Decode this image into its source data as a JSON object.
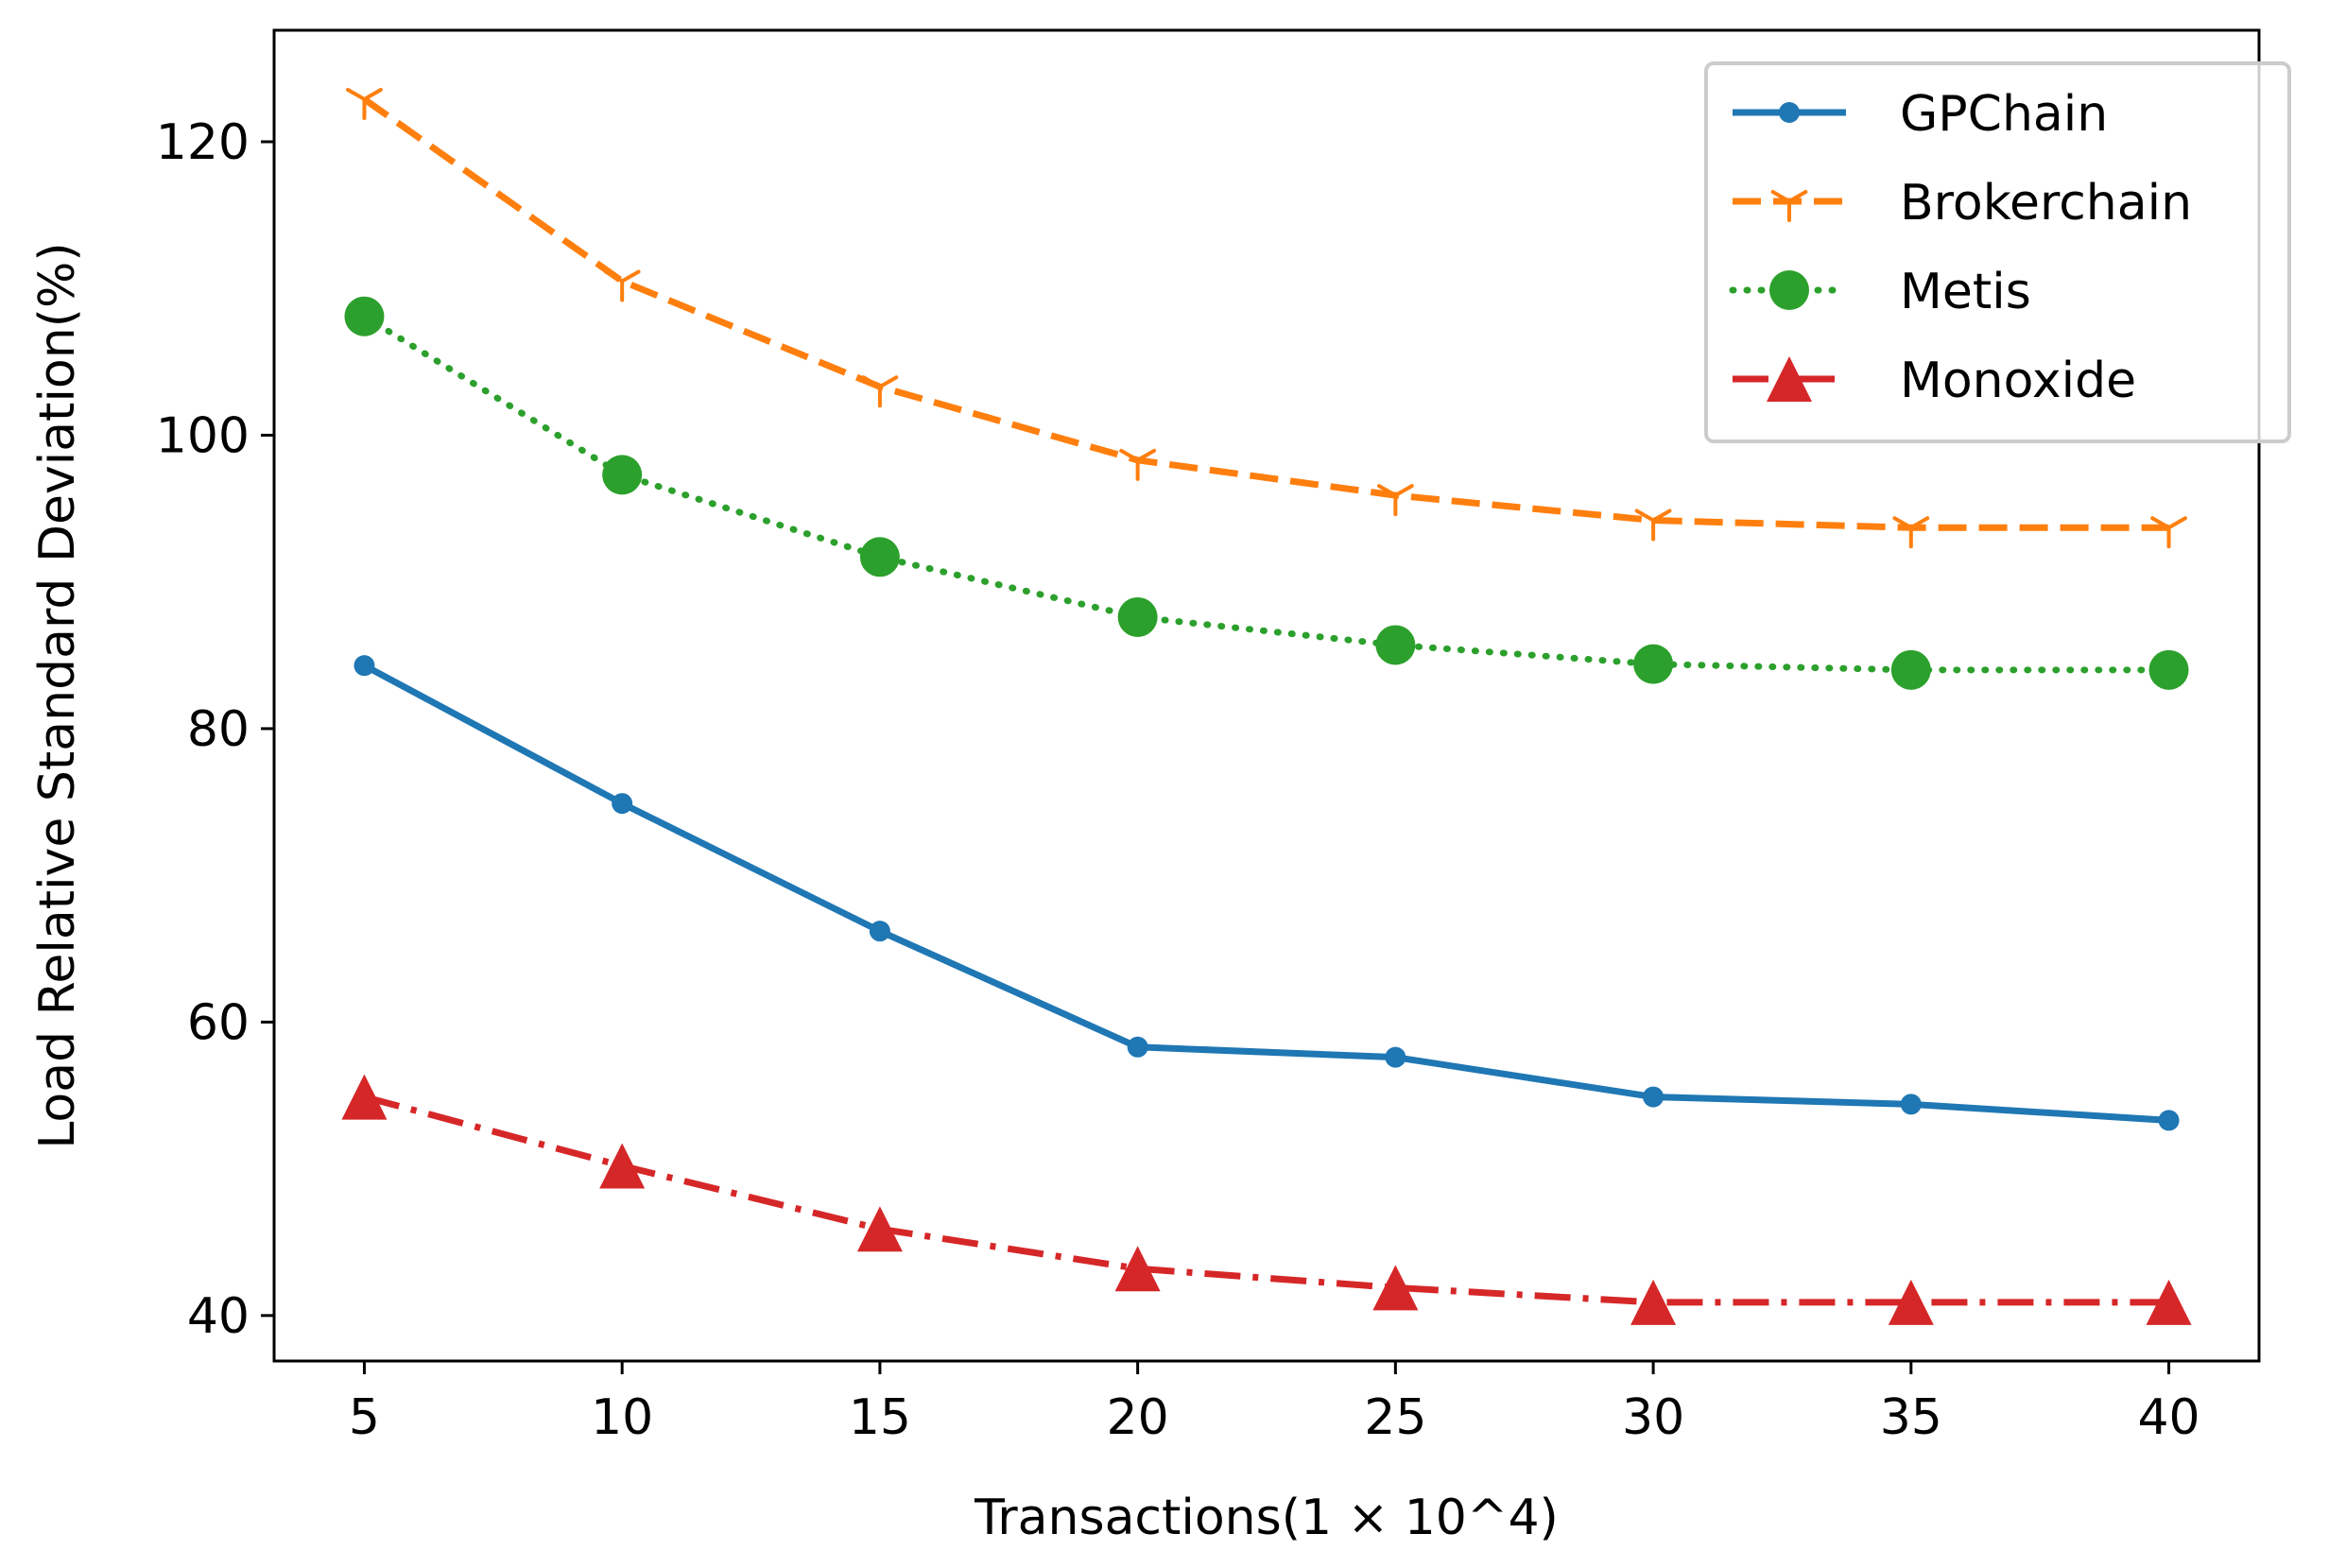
{
  "chart_data": {
    "type": "line",
    "title": "",
    "xlabel": "Transactions(1 × 10^4)",
    "ylabel": "Load Relative Standard Deviation(%)",
    "x": [
      5,
      10,
      15,
      20,
      25,
      30,
      35,
      40
    ],
    "x_ticks": [
      5,
      10,
      15,
      20,
      25,
      30,
      35,
      40
    ],
    "y_ticks": [
      40,
      60,
      80,
      100,
      120
    ],
    "xlim": [
      3.25,
      41.75
    ],
    "ylim": [
      36.9,
      127.6
    ],
    "grid": false,
    "legend_position": "top-right",
    "series": [
      {
        "name": "GPChain",
        "color": "#1f77b4",
        "line_style": "solid",
        "marker": "point",
        "values": [
          84.3,
          74.9,
          66.2,
          58.3,
          57.6,
          54.9,
          54.4,
          53.3
        ]
      },
      {
        "name": "Brokerchain",
        "color": "#ff7f0e",
        "line_style": "dashed",
        "marker": "tri-down",
        "values": [
          122.9,
          110.5,
          103.3,
          98.3,
          95.9,
          94.2,
          93.7,
          93.7
        ]
      },
      {
        "name": "Metis",
        "color": "#2ca02c",
        "line_style": "dotted",
        "marker": "circle",
        "values": [
          108.1,
          97.3,
          91.7,
          87.6,
          85.7,
          84.4,
          84.0,
          84.0
        ]
      },
      {
        "name": "Monoxide",
        "color": "#d62728",
        "line_style": "dashdot",
        "marker": "triangle-up",
        "values": [
          54.9,
          50.2,
          45.9,
          43.2,
          41.9,
          40.9,
          40.9,
          40.9
        ]
      }
    ]
  }
}
